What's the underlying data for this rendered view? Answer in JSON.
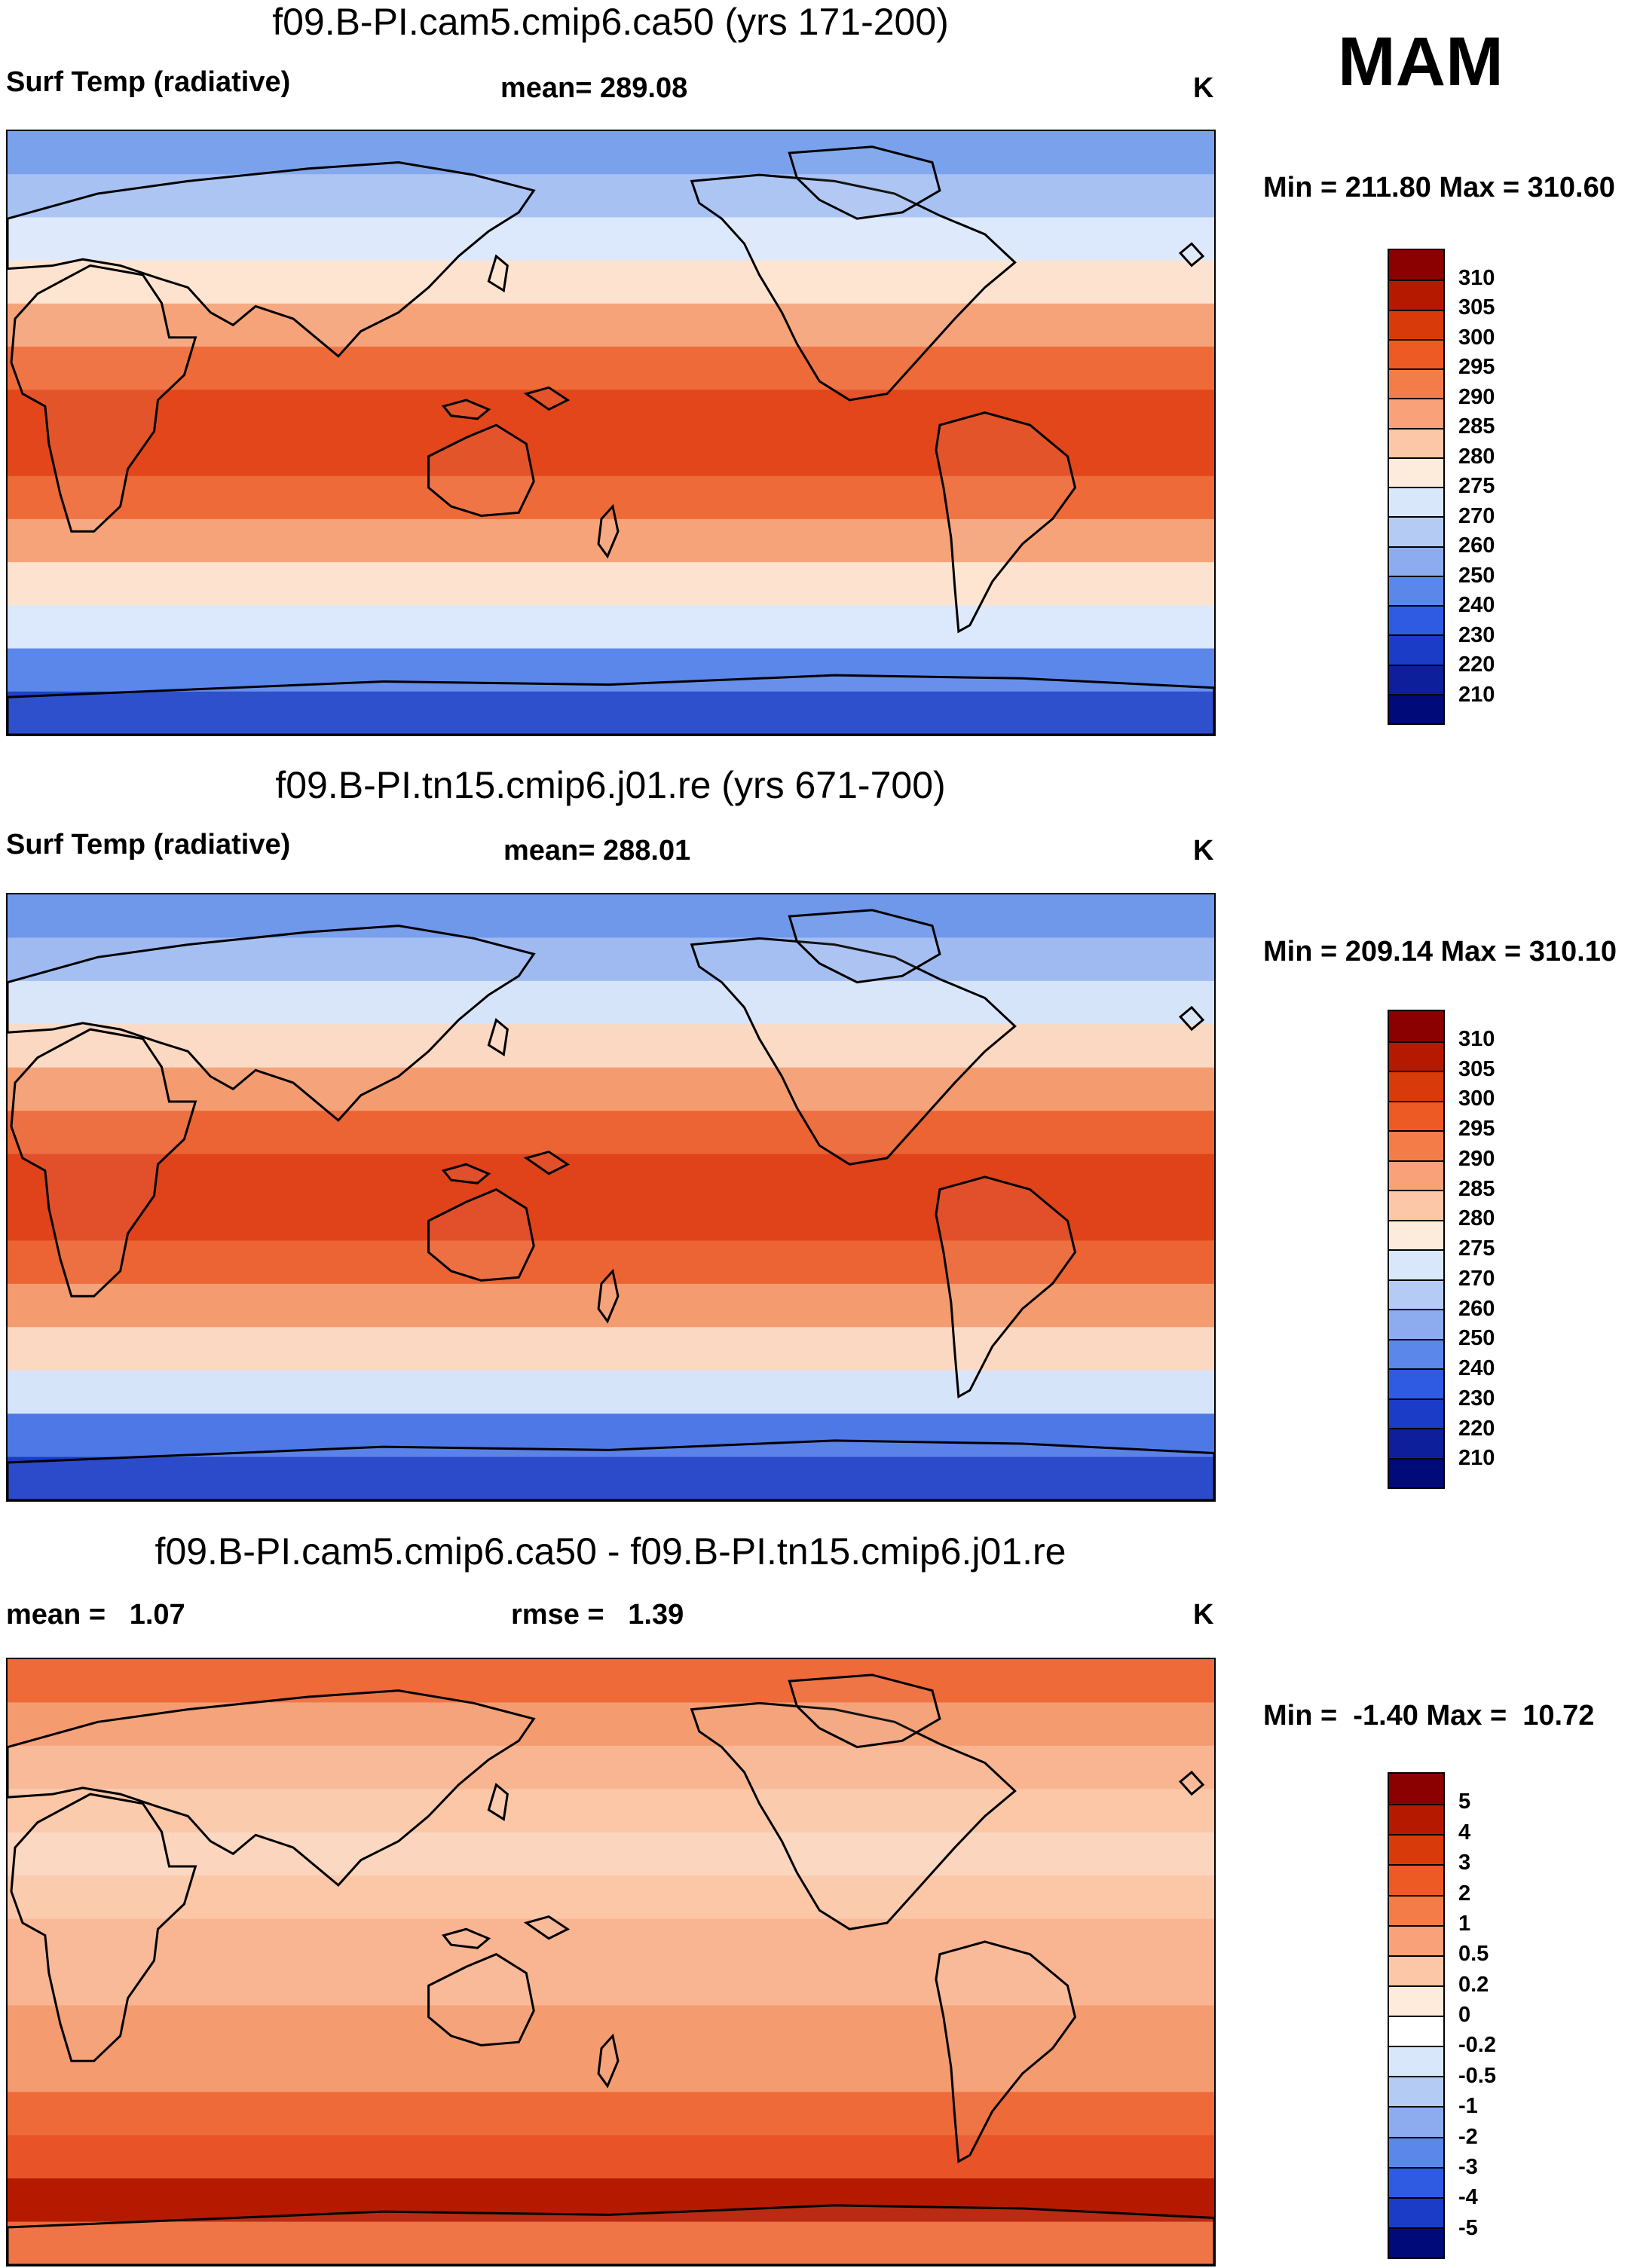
{
  "season": "MAM",
  "panels": [
    {
      "id": "panel1",
      "title": "f09.B-PI.cam5.cmip6.ca50 (yrs 171-200)",
      "left_label": "Surf Temp (radiative)",
      "center_label": "mean= 289.08",
      "units": "K",
      "minmax": "Min = 211.80 Max = 310.60",
      "colorbar": {
        "levels": [
          "310",
          "305",
          "300",
          "295",
          "290",
          "285",
          "280",
          "275",
          "270",
          "260",
          "250",
          "240",
          "230",
          "220",
          "210"
        ],
        "colors": [
          "#8b0000",
          "#b51a00",
          "#d93a0a",
          "#ee5a24",
          "#f47c48",
          "#f9a179",
          "#fbc7a7",
          "#fdebdc",
          "#d8e8fa",
          "#b4ccf4",
          "#8cacef",
          "#5b86ea",
          "#2f5be3",
          "#1a3cc7",
          "#0d1f9a",
          "#000a78"
        ]
      },
      "bands": [
        "#7aa2ec",
        "#a6c1f2",
        "#dce8fb",
        "#fde3cf",
        "#f6a37a",
        "#ee6a38",
        "#e2461a",
        "#e2461a",
        "#ee6a38",
        "#f6a37a",
        "#fde3cf",
        "#dce8fb",
        "#5b86ea",
        "#1d42c8"
      ]
    },
    {
      "id": "panel2",
      "title": "f09.B-PI.tn15.cmip6.j01.re (yrs 671-700)",
      "left_label": "Surf Temp (radiative)",
      "center_label": "mean= 288.01",
      "units": "K",
      "minmax": "Min = 209.14 Max = 310.10",
      "colorbar": {
        "levels": [
          "310",
          "305",
          "300",
          "295",
          "290",
          "285",
          "280",
          "275",
          "270",
          "260",
          "250",
          "240",
          "230",
          "220",
          "210"
        ],
        "colors": [
          "#8b0000",
          "#b51a00",
          "#d93a0a",
          "#ee5a24",
          "#f47c48",
          "#f9a179",
          "#fbc7a7",
          "#fdebdc",
          "#d8e8fa",
          "#b4ccf4",
          "#8cacef",
          "#5b86ea",
          "#2f5be3",
          "#1a3cc7",
          "#0d1f9a",
          "#000a78"
        ]
      },
      "bands": [
        "#6f97ea",
        "#9fbaf1",
        "#d6e4fa",
        "#fbd8c1",
        "#f49c70",
        "#ec6434",
        "#e0421a",
        "#e0421a",
        "#ec6434",
        "#f49c70",
        "#fbd8c1",
        "#d6e4fa",
        "#4d78e6",
        "#1a3cc7"
      ]
    },
    {
      "id": "panel3",
      "title": "f09.B-PI.cam5.cmip6.ca50 - f09.B-PI.tn15.cmip6.j01.re",
      "left_label": "mean =   1.07",
      "center_label": "rmse =   1.39",
      "units": "K",
      "minmax": "Min =  -1.40 Max =  10.72",
      "colorbar": {
        "levels": [
          "5",
          "4",
          "3",
          "2",
          "1",
          "0.5",
          "0.2",
          "0",
          "-0.2",
          "-0.5",
          "-1",
          "-2",
          "-3",
          "-4",
          "-5"
        ],
        "colors": [
          "#8b0000",
          "#b51a00",
          "#d93a0a",
          "#ee5a24",
          "#f47c48",
          "#f9a179",
          "#fbc7a7",
          "#fdebdc",
          "#ffffff",
          "#d8e8fa",
          "#b4ccf4",
          "#8cacef",
          "#5b86ea",
          "#2f5be3",
          "#1a3cc7",
          "#000a78"
        ]
      },
      "bands": [
        "#ee6a38",
        "#f49c70",
        "#f9b592",
        "#fbc7a7",
        "#fbd5bd",
        "#fbc7a7",
        "#f9b592",
        "#f9b592",
        "#f49c70",
        "#f49c70",
        "#ee6a38",
        "#e85328",
        "#b51a00",
        "#ee6a38"
      ]
    }
  ]
}
